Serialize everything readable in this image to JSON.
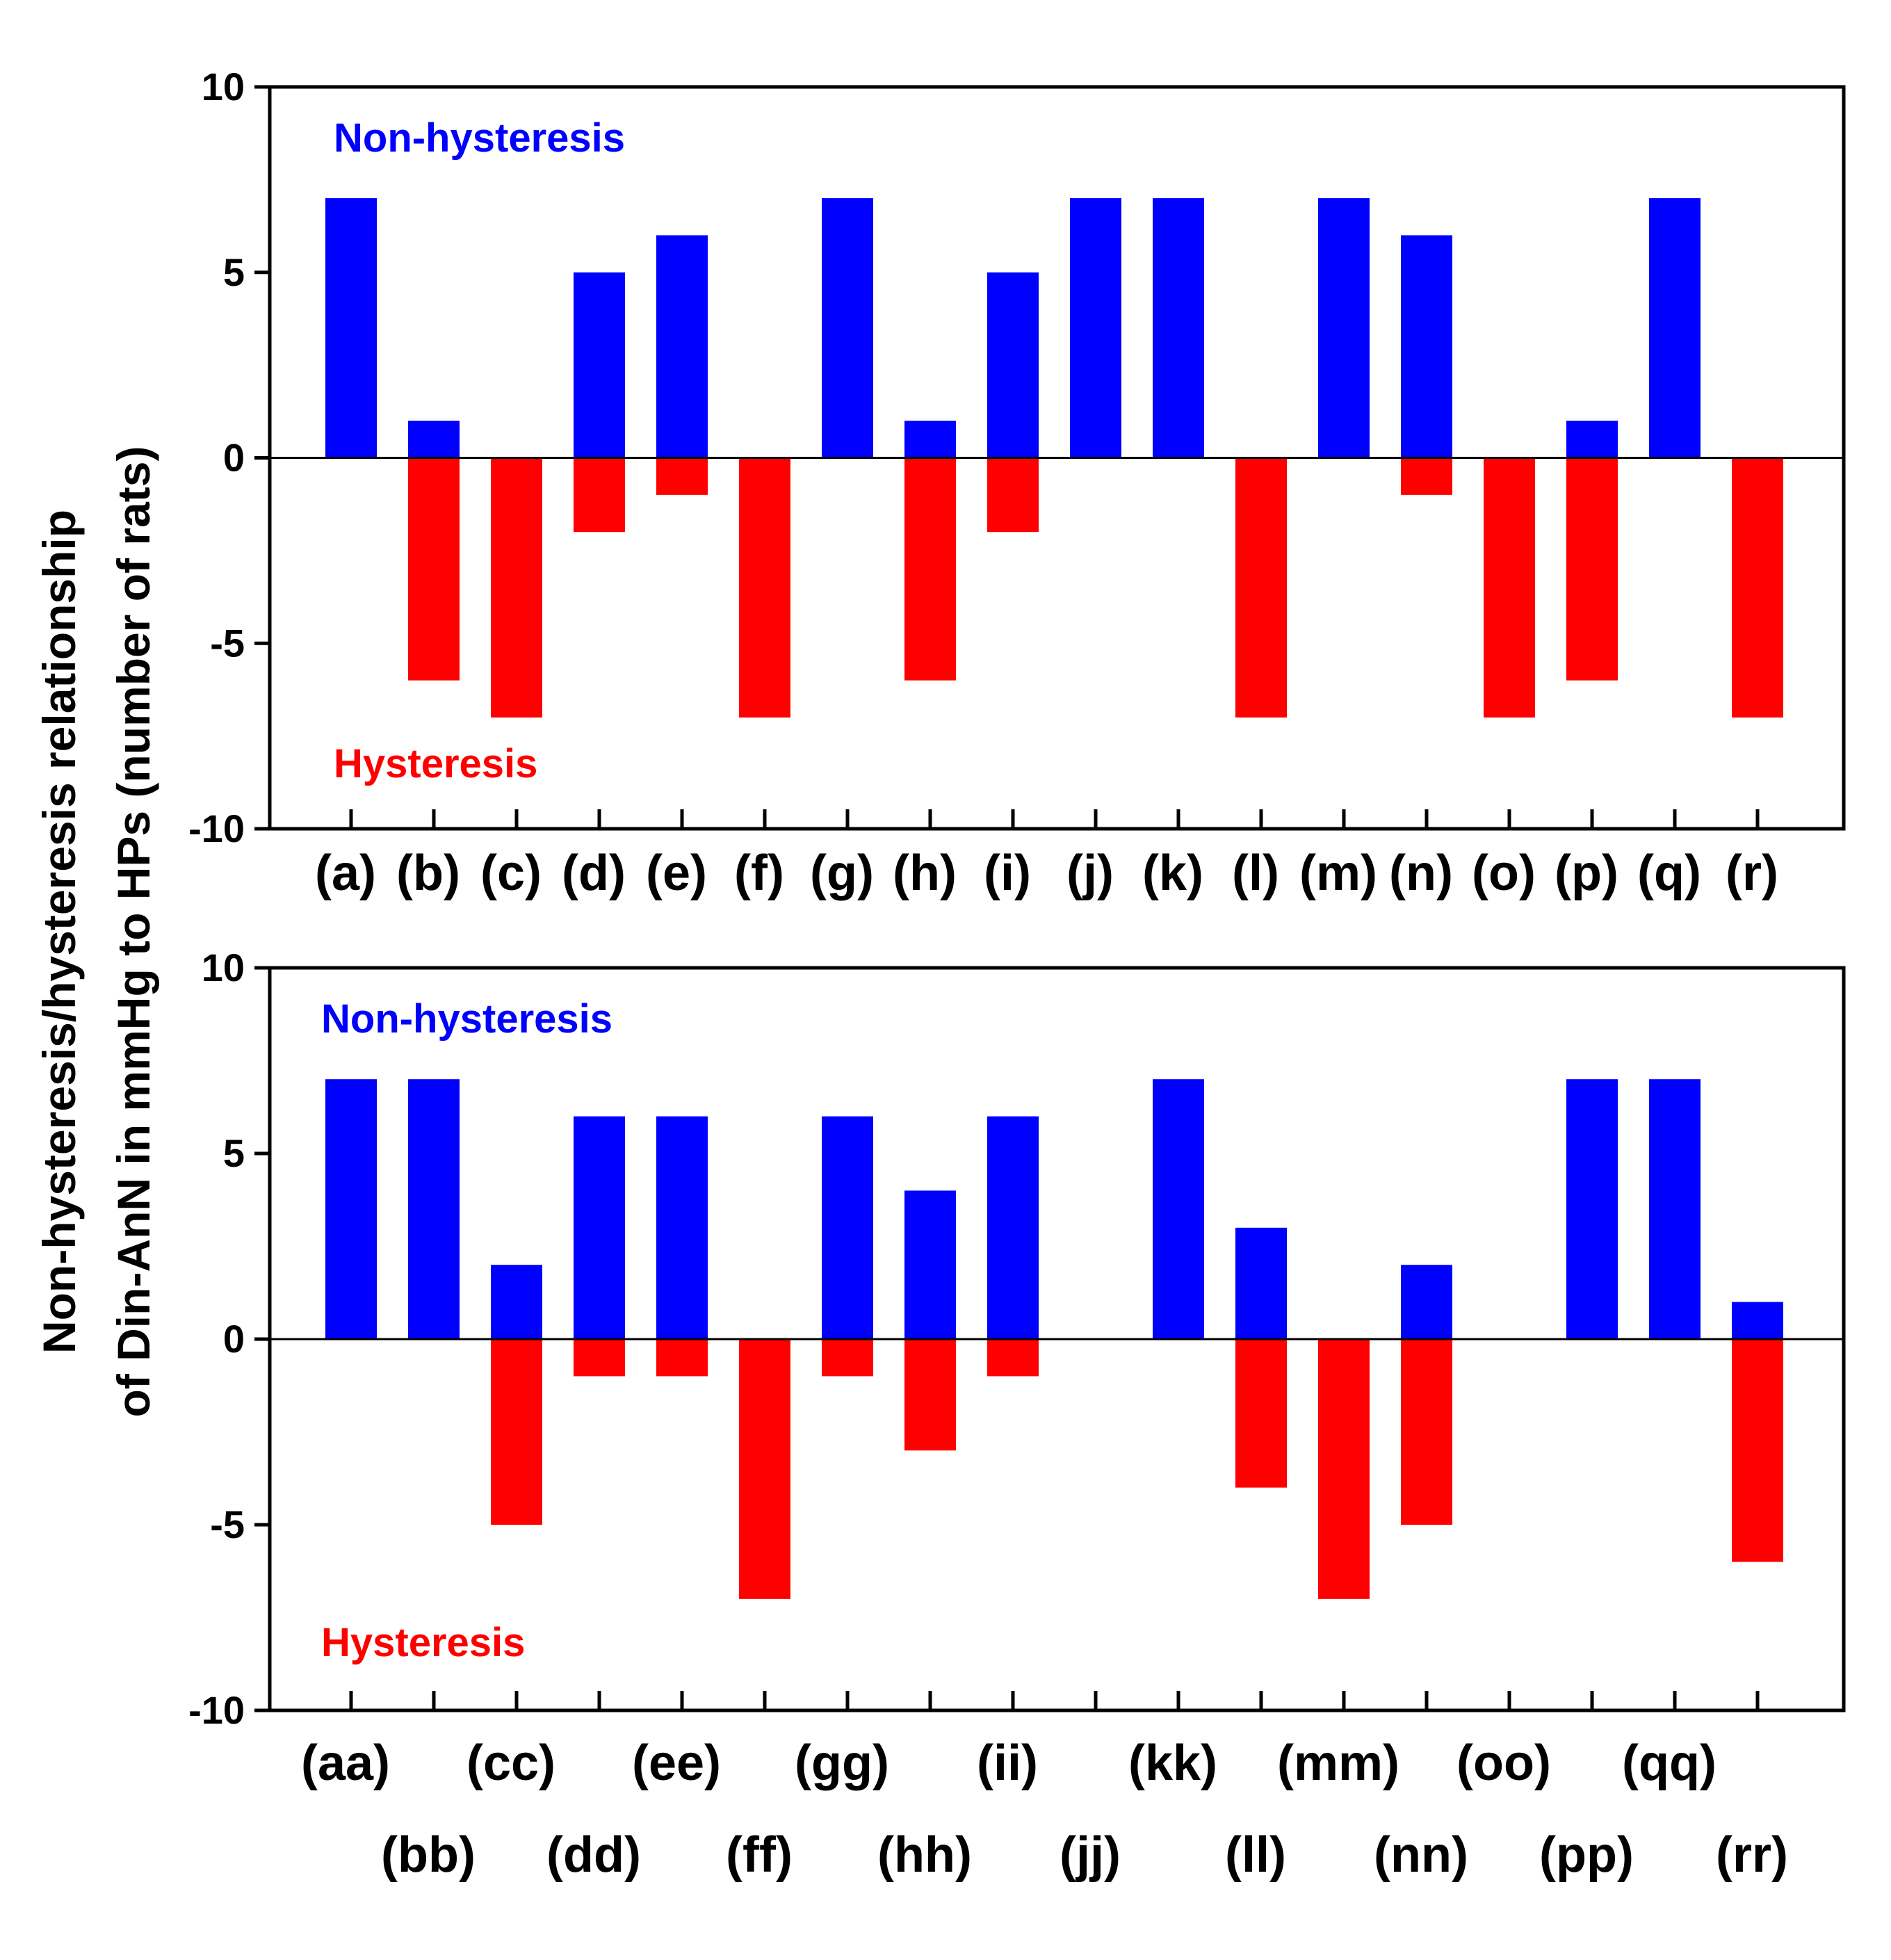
{
  "colors": {
    "non_hysteresis": "#0000ff",
    "hysteresis": "#ff0000",
    "axis": "#000000"
  },
  "ylabel_lines": [
    "Non-hysteresis/hysteresis relationship",
    "of Din-AnN in mmHg to HPs (number of rats)"
  ],
  "chart_data": [
    {
      "type": "bar",
      "annotations": {
        "top": "Non-hysteresis",
        "bottom": "Hysteresis"
      },
      "categories": [
        "(a)",
        "(b)",
        "(c)",
        "(d)",
        "(e)",
        "(f)",
        "(g)",
        "(h)",
        "(i)",
        "(j)",
        "(k)",
        "(l)",
        "(m)",
        "(n)",
        "(o)",
        "(p)",
        "(q)",
        "(r)"
      ],
      "series": [
        {
          "values": [
            7,
            1,
            0,
            5,
            6,
            0,
            7,
            1,
            5,
            7,
            7,
            0,
            7,
            6,
            0,
            1,
            7,
            0
          ]
        },
        {
          "values": [
            0,
            -6,
            -7,
            -2,
            -1,
            -7,
            0,
            -6,
            -2,
            0,
            0,
            -7,
            0,
            -1,
            -7,
            -6,
            0,
            -7
          ]
        }
      ],
      "ylim": [
        -10,
        10
      ],
      "yticks": [
        10,
        5,
        0,
        -5,
        -10
      ],
      "ytick_labels": [
        "10",
        "5",
        "0",
        "-5",
        "-10"
      ],
      "grid": false
    },
    {
      "type": "bar",
      "annotations": {
        "top": "Non-hysteresis",
        "bottom": "Hysteresis"
      },
      "categories": [
        "(aa)",
        "(bb)",
        "(cc)",
        "(dd)",
        "(ee)",
        "(ff)",
        "(gg)",
        "(hh)",
        "(ii)",
        "(jj)",
        "(kk)",
        "(ll)",
        "(mm)",
        "(nn)",
        "(oo)",
        "(pp)",
        "(qq)",
        "(rr)"
      ],
      "series": [
        {
          "values": [
            7,
            7,
            2,
            6,
            6,
            0,
            6,
            4,
            6,
            0,
            7,
            3,
            0,
            2,
            0,
            7,
            7,
            1
          ]
        },
        {
          "values": [
            0,
            0,
            -5,
            -1,
            -1,
            -7,
            -1,
            -3,
            -1,
            0,
            0,
            -4,
            -7,
            -5,
            0,
            0,
            0,
            -6
          ]
        }
      ],
      "ylim": [
        -10,
        10
      ],
      "yticks": [
        10,
        5,
        0,
        -5,
        -10
      ],
      "ytick_labels": [
        "10",
        "5",
        "0",
        "-5",
        "-10"
      ],
      "grid": false
    }
  ]
}
